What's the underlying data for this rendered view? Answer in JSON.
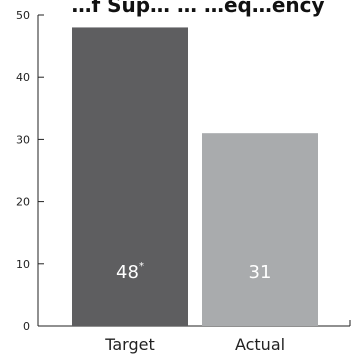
{
  "chart_data": {
    "type": "bar",
    "title": "…f Sup… … …eq…ency",
    "categories": [
      "Target",
      "Actual"
    ],
    "values": [
      48,
      31
    ],
    "data_labels": [
      "48",
      "31"
    ],
    "data_label_marks": [
      "*",
      ""
    ],
    "bar_colors": [
      "#5e5e60",
      "#a9abad"
    ],
    "ylim": [
      0,
      50
    ],
    "yticks": [
      0,
      10,
      20,
      30,
      40,
      50
    ],
    "xlabel": "",
    "ylabel": "",
    "grid": false,
    "legend": "none"
  }
}
